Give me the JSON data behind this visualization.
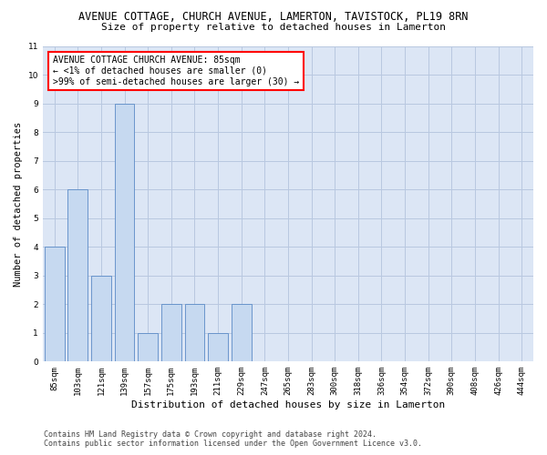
{
  "title": "AVENUE COTTAGE, CHURCH AVENUE, LAMERTON, TAVISTOCK, PL19 8RN",
  "subtitle": "Size of property relative to detached houses in Lamerton",
  "xlabel": "Distribution of detached houses by size in Lamerton",
  "ylabel": "Number of detached properties",
  "categories": [
    "85sqm",
    "103sqm",
    "121sqm",
    "139sqm",
    "157sqm",
    "175sqm",
    "193sqm",
    "211sqm",
    "229sqm",
    "247sqm",
    "265sqm",
    "283sqm",
    "300sqm",
    "318sqm",
    "336sqm",
    "354sqm",
    "372sqm",
    "390sqm",
    "408sqm",
    "426sqm",
    "444sqm"
  ],
  "values": [
    4,
    6,
    3,
    9,
    1,
    2,
    2,
    1,
    2,
    0,
    0,
    0,
    0,
    0,
    0,
    0,
    0,
    0,
    0,
    0,
    0
  ],
  "bar_color": "#c6d9f0",
  "bar_edge_color": "#5a8ac6",
  "ylim": [
    0,
    11
  ],
  "yticks": [
    0,
    1,
    2,
    3,
    4,
    5,
    6,
    7,
    8,
    9,
    10,
    11
  ],
  "background_color": "#ffffff",
  "plot_bg_color": "#dce6f5",
  "grid_color": "#b8c8e0",
  "annotation_text": "AVENUE COTTAGE CHURCH AVENUE: 85sqm\n← <1% of detached houses are smaller (0)\n>99% of semi-detached houses are larger (30) →",
  "footer_text": "Contains HM Land Registry data © Crown copyright and database right 2024.\nContains public sector information licensed under the Open Government Licence v3.0.",
  "title_fontsize": 8.5,
  "subtitle_fontsize": 8,
  "xlabel_fontsize": 8,
  "ylabel_fontsize": 7.5,
  "tick_fontsize": 6.5,
  "annotation_fontsize": 7,
  "footer_fontsize": 6
}
